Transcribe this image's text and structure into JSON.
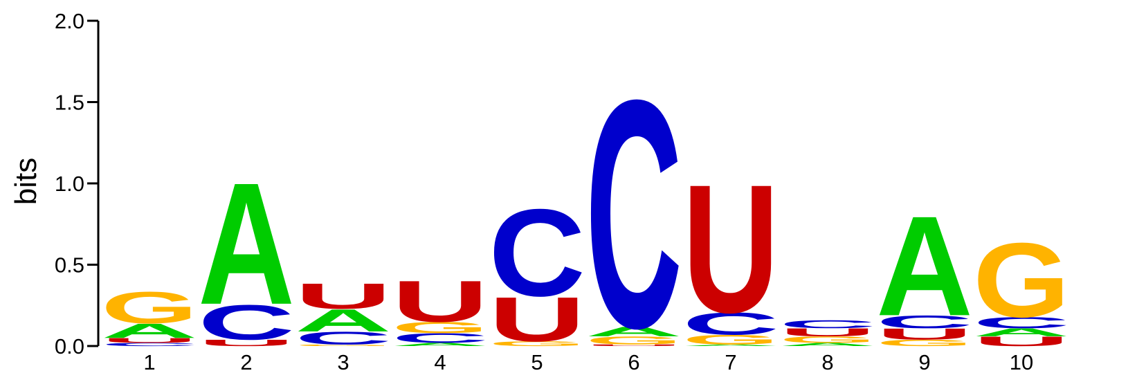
{
  "chart_data": {
    "type": "sequence-logo",
    "title": "",
    "xlabel": "",
    "ylabel": "bits",
    "ylim": [
      0,
      2.0
    ],
    "yticks": [
      "0.0",
      "0.5",
      "1.0",
      "1.5",
      "2.0"
    ],
    "ytick_values": [
      0,
      0.5,
      1.0,
      1.5,
      2.0
    ],
    "positions": [
      "1",
      "2",
      "3",
      "4",
      "5",
      "6",
      "7",
      "8",
      "9",
      "10"
    ],
    "colors": {
      "A": "#00cc00",
      "C": "#0000cc",
      "G": "#ffb300",
      "U": "#cc0000"
    },
    "stacks": [
      [
        {
          "letter": "C",
          "bits": 0.02
        },
        {
          "letter": "U",
          "bits": 0.03
        },
        {
          "letter": "A",
          "bits": 0.09
        },
        {
          "letter": "G",
          "bits": 0.2
        }
      ],
      [
        {
          "letter": "U",
          "bits": 0.04
        },
        {
          "letter": "C",
          "bits": 0.22
        },
        {
          "letter": "A",
          "bits": 0.77
        }
      ],
      [
        {
          "letter": "G",
          "bits": 0.01
        },
        {
          "letter": "C",
          "bits": 0.08
        },
        {
          "letter": "A",
          "bits": 0.14
        },
        {
          "letter": "U",
          "bits": 0.16
        }
      ],
      [
        {
          "letter": "A",
          "bits": 0.02
        },
        {
          "letter": "C",
          "bits": 0.06
        },
        {
          "letter": "G",
          "bits": 0.07
        },
        {
          "letter": "U",
          "bits": 0.26
        }
      ],
      [
        {
          "letter": "G",
          "bits": 0.03
        },
        {
          "letter": "U",
          "bits": 0.28
        },
        {
          "letter": "C",
          "bits": 0.55
        }
      ],
      [
        {
          "letter": "U",
          "bits": 0.01
        },
        {
          "letter": "G",
          "bits": 0.05
        },
        {
          "letter": "A",
          "bits": 0.06
        },
        {
          "letter": "C",
          "bits": 1.44
        }
      ],
      [
        {
          "letter": "A",
          "bits": 0.01
        },
        {
          "letter": "G",
          "bits": 0.06
        },
        {
          "letter": "C",
          "bits": 0.14
        },
        {
          "letter": "U",
          "bits": 0.81
        }
      ],
      [
        {
          "letter": "A",
          "bits": 0.02
        },
        {
          "letter": "G",
          "bits": 0.04
        },
        {
          "letter": "U",
          "bits": 0.05
        },
        {
          "letter": "C",
          "bits": 0.05
        }
      ],
      [
        {
          "letter": "G",
          "bits": 0.04
        },
        {
          "letter": "U",
          "bits": 0.07
        },
        {
          "letter": "C",
          "bits": 0.08
        },
        {
          "letter": "A",
          "bits": 0.63
        }
      ],
      [
        {
          "letter": "U",
          "bits": 0.06
        },
        {
          "letter": "A",
          "bits": 0.05
        },
        {
          "letter": "C",
          "bits": 0.07
        },
        {
          "letter": "G",
          "bits": 0.47
        }
      ]
    ]
  }
}
